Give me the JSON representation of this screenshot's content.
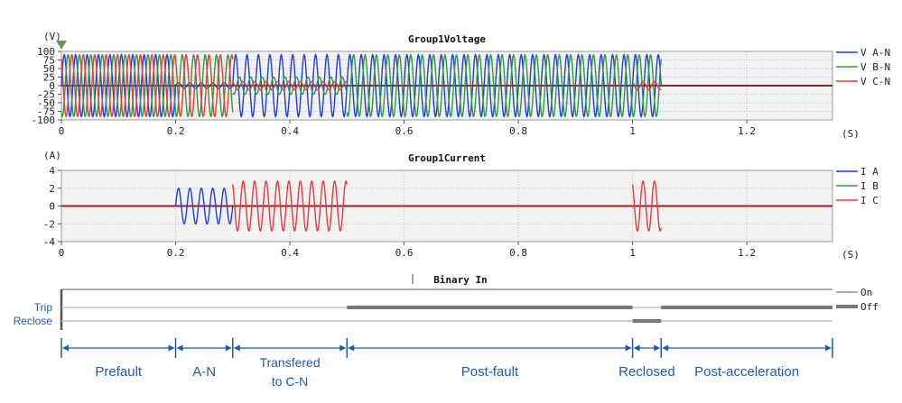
{
  "colors": {
    "phase_a": "#1f3fd6",
    "phase_b": "#2f9a3c",
    "phase_c": "#e23c3c",
    "zero_line": "#a51e1e",
    "annotation": "#1f5aa6",
    "grid": "#bcbcbc",
    "plot_bg": "#f2f2f2",
    "binary_line": "#777777"
  },
  "chart_data": [
    {
      "type": "line",
      "title": "Group1Voltage",
      "ylabel": "(V)",
      "xlabel": "(S)",
      "xlim": [
        0,
        1.35
      ],
      "ylim": [
        -100,
        100
      ],
      "yticks": [
        "100",
        "75",
        "50",
        "25",
        "0",
        "-25",
        "-50",
        "-75",
        "-100"
      ],
      "xticks": [
        "0",
        "0.2",
        "0.4",
        "0.6",
        "0.8",
        "1",
        "1.2"
      ],
      "x_tick_values": [
        0,
        0.2,
        0.4,
        0.6,
        0.8,
        1.0,
        1.2
      ],
      "frequency_hz": 50,
      "grid": true,
      "legend_position": "right",
      "series": [
        {
          "name": "V A-N",
          "color": "#1f3fd6",
          "phase_deg": 0,
          "segments": [
            {
              "t0": 0.0,
              "t1": 0.2,
              "amplitude": 90
            },
            {
              "t0": 0.2,
              "t1": 0.3,
              "amplitude": 8
            },
            {
              "t0": 0.3,
              "t1": 1.05,
              "amplitude": 90
            }
          ]
        },
        {
          "name": "V B-N",
          "color": "#2f9a3c",
          "phase_deg": -120,
          "segments": [
            {
              "t0": 0.0,
              "t1": 0.3,
              "amplitude": 90
            },
            {
              "t0": 0.3,
              "t1": 0.5,
              "amplitude": 25
            },
            {
              "t0": 0.5,
              "t1": 1.05,
              "amplitude": 90
            }
          ]
        },
        {
          "name": "V C-N",
          "color": "#e23c3c",
          "phase_deg": 120,
          "segments": [
            {
              "t0": 0.0,
              "t1": 0.3,
              "amplitude": 90
            },
            {
              "t0": 0.3,
              "t1": 0.5,
              "amplitude": 12
            },
            {
              "t0": 1.0,
              "t1": 1.05,
              "amplitude": 12
            }
          ]
        }
      ]
    },
    {
      "type": "line",
      "title": "Group1Current",
      "ylabel": "(A)",
      "xlabel": "(S)",
      "xlim": [
        0,
        1.35
      ],
      "ylim": [
        -4,
        4
      ],
      "yticks": [
        "4",
        "2",
        "0",
        "-2",
        "-4"
      ],
      "xticks": [
        "0",
        "0.2",
        "0.4",
        "0.6",
        "0.8",
        "1",
        "1.2"
      ],
      "x_tick_values": [
        0,
        0.2,
        0.4,
        0.6,
        0.8,
        1.0,
        1.2
      ],
      "frequency_hz": 50,
      "grid": true,
      "legend_position": "right",
      "series": [
        {
          "name": "I A",
          "color": "#1f3fd6",
          "phase_deg": 0,
          "segments": [
            {
              "t0": 0.2,
              "t1": 0.3,
              "amplitude": 2.0
            }
          ]
        },
        {
          "name": "I B",
          "color": "#2f9a3c",
          "phase_deg": -120,
          "segments": []
        },
        {
          "name": "I C",
          "color": "#e23c3c",
          "phase_deg": 120,
          "segments": [
            {
              "t0": 0.3,
              "t1": 0.5,
              "amplitude": 2.8
            },
            {
              "t0": 1.0,
              "t1": 1.05,
              "amplitude": 2.8
            }
          ]
        }
      ]
    },
    {
      "type": "line",
      "title": "Binary In",
      "xlim": [
        0,
        1.35
      ],
      "channels": [
        {
          "name": "Trip",
          "on_intervals": [
            [
              0.5,
              1.0
            ],
            [
              1.05,
              1.35
            ]
          ]
        },
        {
          "name": "Reclose",
          "on_intervals": [
            [
              1.0,
              1.05
            ]
          ]
        }
      ],
      "legend": [
        {
          "name": "On",
          "style": "thin"
        },
        {
          "name": "Off",
          "style": "thick"
        }
      ]
    }
  ],
  "annotations": {
    "boundaries": [
      0.0,
      0.2,
      0.3,
      0.5,
      1.0,
      1.05,
      1.35
    ],
    "segments": [
      {
        "label": "Prefault",
        "t0": 0.0,
        "t1": 0.2
      },
      {
        "label": "A-N",
        "t0": 0.2,
        "t1": 0.3
      },
      {
        "label": "Transfered",
        "label_line2": "to C-N",
        "t0": 0.3,
        "t1": 0.5
      },
      {
        "label": "Post-fault",
        "t0": 0.5,
        "t1": 1.0
      },
      {
        "label": "Reclosed",
        "t0": 1.0,
        "t1": 1.05
      },
      {
        "label": "Post-acceleration",
        "t0": 1.05,
        "t1": 1.35
      }
    ]
  }
}
